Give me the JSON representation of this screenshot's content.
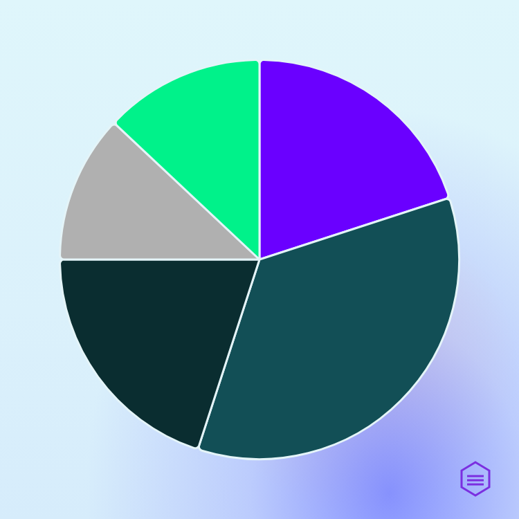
{
  "chart_data": {
    "type": "pie",
    "values": [
      20,
      35,
      20,
      12,
      13
    ],
    "colors": [
      "#6a00ff",
      "#124f56",
      "#0a2d30",
      "#b0b0b0",
      "#00f28a"
    ]
  }
}
